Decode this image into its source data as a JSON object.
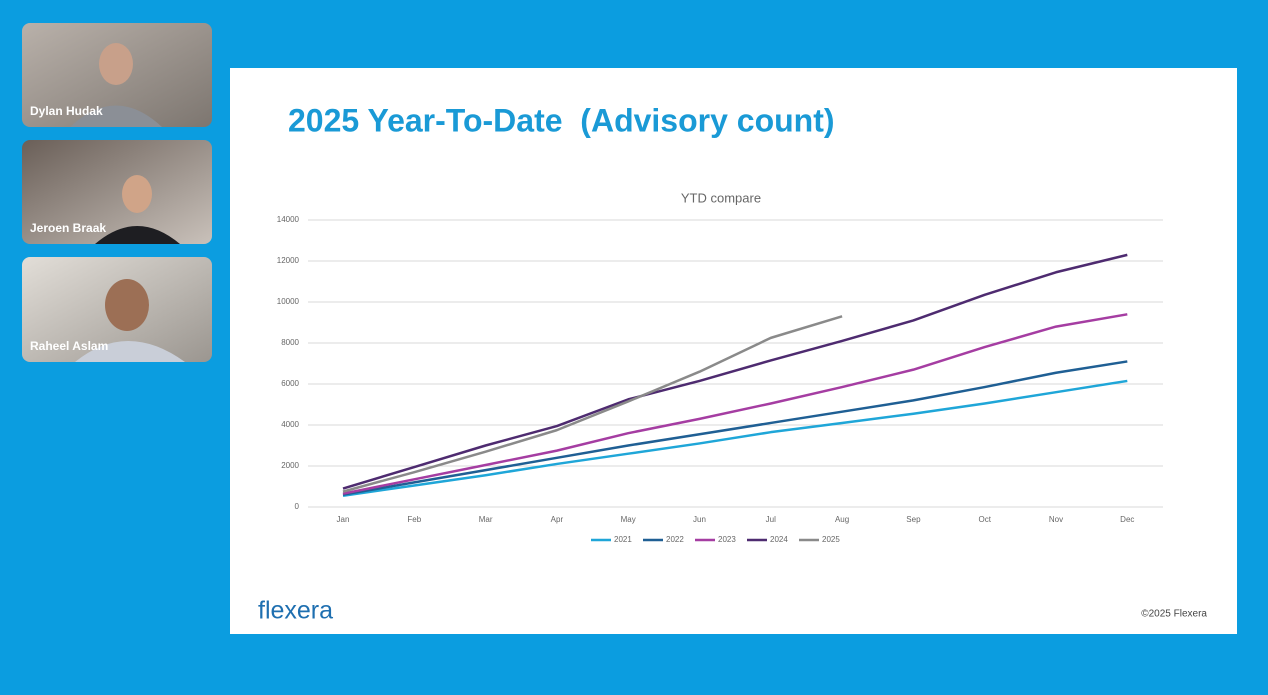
{
  "participants": [
    {
      "name": "Dylan Hudak"
    },
    {
      "name": "Jeroen Braak"
    },
    {
      "name": "Raheel Aslam"
    }
  ],
  "slide": {
    "title": "2025 Year-To-Date  (Advisory count)",
    "logo": "flexera",
    "copyright": "©2025 Flexera"
  },
  "chart_data": {
    "type": "line",
    "title": "YTD compare",
    "categories": [
      "Jan",
      "Feb",
      "Mar",
      "Apr",
      "May",
      "Jun",
      "Jul",
      "Aug",
      "Sep",
      "Oct",
      "Nov",
      "Dec"
    ],
    "series": [
      {
        "name": "2021",
        "color": "#1fa6d8",
        "values": [
          550,
          1050,
          1550,
          2100,
          2600,
          3100,
          3650,
          4100,
          4550,
          5050,
          5600,
          6150
        ]
      },
      {
        "name": "2022",
        "color": "#1f5f94",
        "values": [
          600,
          1200,
          1800,
          2400,
          3000,
          3550,
          4100,
          4650,
          5200,
          5850,
          6550,
          7100
        ]
      },
      {
        "name": "2023",
        "color": "#a53da2",
        "values": [
          650,
          1350,
          2050,
          2750,
          3600,
          4300,
          5050,
          5850,
          6700,
          7800,
          8800,
          9400
        ]
      },
      {
        "name": "2024",
        "color": "#4e2b70",
        "values": [
          900,
          1950,
          3000,
          3950,
          5250,
          6150,
          7150,
          8100,
          9100,
          10350,
          11450,
          12300
        ]
      },
      {
        "name": "2025",
        "color": "#8a8a8a",
        "values": [
          750,
          1700,
          2700,
          3750,
          5150,
          6600,
          8250,
          9300,
          null,
          null,
          null,
          null
        ]
      }
    ],
    "ylim": [
      0,
      14000
    ],
    "yticks": [
      0,
      2000,
      4000,
      6000,
      8000,
      10000,
      12000,
      14000
    ],
    "grid": true,
    "legend": "bottom"
  }
}
